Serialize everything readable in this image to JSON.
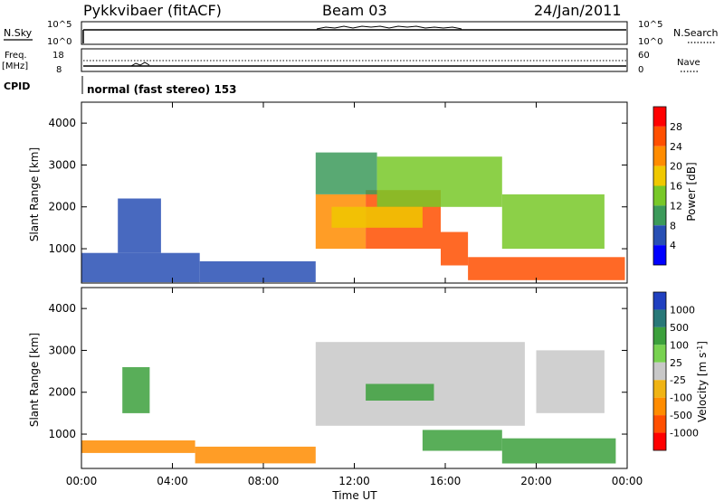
{
  "header": {
    "station": "Pykkvibaer (fitACF)",
    "beam": "Beam 03",
    "date": "24/Jan/2011"
  },
  "top_panels": {
    "sky_label": "N.Sky",
    "sky_ticks": [
      "10^5",
      "10^0"
    ],
    "search_label": "N.Search",
    "search_ticks": [
      "10^5",
      "10^0"
    ],
    "freq_label_1": "Freq.",
    "freq_label_2": "[MHz]",
    "freq_ticks": [
      "18",
      "8"
    ],
    "nave_label": "Nave",
    "nave_ticks": [
      "60",
      "0"
    ],
    "cpid_label": "CPID",
    "cpid_text": "normal (fast stereo) 153"
  },
  "chart_data": [
    {
      "type": "heatmap",
      "name": "power",
      "ylabel": "Slant Range [km]",
      "yticks": [
        "4000",
        "3000",
        "2000",
        "1000"
      ],
      "ylim": [
        180,
        4500
      ],
      "xlim": [
        0,
        24
      ],
      "colorbar_label": "Power [dB]",
      "colorbar_ticks": [
        "28",
        "24",
        "20",
        "16",
        "12",
        "8",
        "4"
      ],
      "colorbar_colors": [
        "#ff0000",
        "#ff4f00",
        "#ff8c00",
        "#f0c800",
        "#78c828",
        "#3c9a5a",
        "#284fb4",
        "#0000ff"
      ],
      "cells": [
        {
          "t": [
            0.0,
            5.2
          ],
          "r": [
            200,
            900
          ],
          "v": 6
        },
        {
          "t": [
            5.2,
            10.3
          ],
          "r": [
            200,
            700
          ],
          "v": 7
        },
        {
          "t": [
            1.6,
            3.5
          ],
          "r": [
            900,
            2200
          ],
          "v": 6
        },
        {
          "t": [
            10.3,
            12.5
          ],
          "r": [
            1000,
            2300
          ],
          "v": 23
        },
        {
          "t": [
            12.5,
            15.8
          ],
          "r": [
            1000,
            2400
          ],
          "v": 24
        },
        {
          "t": [
            15.8,
            17.0
          ],
          "r": [
            600,
            1400
          ],
          "v": 25
        },
        {
          "t": [
            17.0,
            23.9
          ],
          "r": [
            250,
            800
          ],
          "v": 27
        },
        {
          "t": [
            10.3,
            13.0
          ],
          "r": [
            2300,
            3300
          ],
          "v": 9
        },
        {
          "t": [
            13.0,
            18.5
          ],
          "r": [
            2000,
            3200
          ],
          "v": 12
        },
        {
          "t": [
            18.5,
            23.0
          ],
          "r": [
            1000,
            2300
          ],
          "v": 15
        },
        {
          "t": [
            11.0,
            15.0
          ],
          "r": [
            1500,
            2000
          ],
          "v": 18
        }
      ]
    },
    {
      "type": "heatmap",
      "name": "velocity",
      "ylabel": "Slant Range [km]",
      "yticks": [
        "4000",
        "3000",
        "2000",
        "1000"
      ],
      "xlabel": "Time UT",
      "xticks": [
        "00:00",
        "04:00",
        "08:00",
        "12:00",
        "16:00",
        "20:00",
        "00:00"
      ],
      "ylim": [
        180,
        4500
      ],
      "xlim": [
        0,
        24
      ],
      "colorbar_label": "Velocity [m s^-1]",
      "colorbar_ticks": [
        "1000",
        "500",
        "100",
        "25",
        "-25",
        "-100",
        "-500",
        "-1000"
      ],
      "colorbar_colors": [
        "#2040c0",
        "#287878",
        "#3ca03c",
        "#78d250",
        "#c8c8c8",
        "#f0b414",
        "#ff8c00",
        "#ff4f00",
        "#ff0000"
      ],
      "cells": [
        {
          "t": [
            0.0,
            5.0
          ],
          "r": [
            550,
            850
          ],
          "v": -150
        },
        {
          "t": [
            5.0,
            10.3
          ],
          "r": [
            300,
            700
          ],
          "v": -150
        },
        {
          "t": [
            10.3,
            19.5
          ],
          "r": [
            1200,
            3200
          ],
          "v": 0
        },
        {
          "t": [
            12.5,
            15.5
          ],
          "r": [
            1800,
            2200
          ],
          "v": 150
        },
        {
          "t": [
            15.0,
            18.5
          ],
          "r": [
            600,
            1100
          ],
          "v": 300
        },
        {
          "t": [
            18.5,
            23.5
          ],
          "r": [
            300,
            900
          ],
          "v": 300
        },
        {
          "t": [
            20.0,
            23.0
          ],
          "r": [
            1500,
            3000
          ],
          "v": 0
        },
        {
          "t": [
            1.8,
            3.0
          ],
          "r": [
            1500,
            2600
          ],
          "v": 100
        }
      ]
    }
  ]
}
